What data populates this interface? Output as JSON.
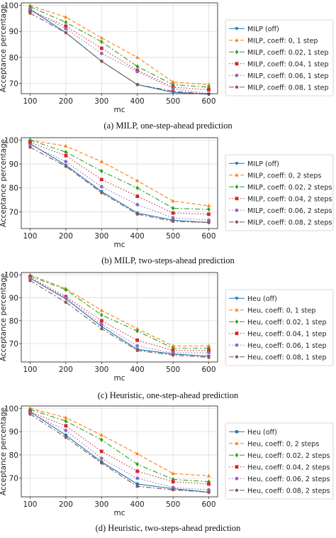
{
  "chart_data": [
    {
      "type": "line",
      "caption": "(a) MILP, one-step-ahead prediction",
      "xlabel": "mc",
      "ylabel": "Acceptance percentage",
      "x": [
        100,
        200,
        300,
        400,
        500,
        600
      ],
      "ylim": [
        66,
        101
      ],
      "yticks": [
        70,
        80,
        90,
        100
      ],
      "grid": true,
      "legend_position": "right",
      "series": [
        {
          "name": "MILP (off)",
          "color": "#1f77b4",
          "dash": "solid",
          "marker": "tri-down",
          "values": [
            98.5,
            89.5,
            78.5,
            69.5,
            66.5,
            65.8
          ]
        },
        {
          "name": "MILP, coeff: 0, 1 step",
          "color": "#ff7f0e",
          "dash": "dashed",
          "marker": "tri-up",
          "values": [
            100,
            95.5,
            87.5,
            80,
            70.5,
            69.5
          ]
        },
        {
          "name": "MILP, coeff: 0.02, 1 step",
          "color": "#2ca02c",
          "dash": "dashdot",
          "marker": "diamond",
          "values": [
            99.5,
            93.5,
            86,
            76.5,
            69.5,
            68.5
          ]
        },
        {
          "name": "MILP, coeff: 0.04, 1 step",
          "color": "#d62728",
          "dash": "dotted",
          "marker": "square",
          "values": [
            98,
            92,
            83.5,
            75,
            68.5,
            67.5
          ]
        },
        {
          "name": "MILP, coeff: 0.06, 1 step",
          "color": "#9467bd",
          "dash": "dotted",
          "marker": "circle",
          "values": [
            98.5,
            91,
            81.5,
            74.5,
            68,
            66
          ]
        },
        {
          "name": "MILP, coeff: 0.08, 1 step",
          "color": "#8c564b",
          "dash": "dashdot",
          "marker": "hexagon",
          "values": [
            97,
            89.5,
            78.5,
            69.5,
            67,
            65.8
          ]
        }
      ]
    },
    {
      "type": "line",
      "caption": "(b) MILP, two-steps-ahead prediction",
      "xlabel": "mc",
      "ylabel": "Acceptance percentage",
      "x": [
        100,
        200,
        300,
        400,
        500,
        600
      ],
      "ylim": [
        63,
        101
      ],
      "yticks": [
        70,
        80,
        90,
        100
      ],
      "grid": true,
      "legend_position": "right",
      "series": [
        {
          "name": "MILP (off)",
          "color": "#1f77b4",
          "dash": "solid",
          "marker": "tri-down",
          "values": [
            98.5,
            89.5,
            78.5,
            69.5,
            66.5,
            65.5
          ]
        },
        {
          "name": "MILP, coeff: 0, 2 steps",
          "color": "#ff7f0e",
          "dash": "dashed",
          "marker": "tri-up",
          "values": [
            100,
            97.5,
            91,
            83,
            74.5,
            72.5
          ]
        },
        {
          "name": "MILP, coeff: 0.02, 2 steps",
          "color": "#2ca02c",
          "dash": "dashdot",
          "marker": "diamond",
          "values": [
            100,
            95,
            87,
            80,
            71.5,
            71
          ]
        },
        {
          "name": "MILP, coeff: 0.04, 2 steps",
          "color": "#d62728",
          "dash": "dotted",
          "marker": "square",
          "values": [
            99,
            93.5,
            83.5,
            76.5,
            69.5,
            69
          ]
        },
        {
          "name": "MILP, coeff: 0.06, 2 steps",
          "color": "#9467bd",
          "dash": "dotted",
          "marker": "circle",
          "values": [
            98,
            91,
            80.5,
            73,
            67.5,
            66.5
          ]
        },
        {
          "name": "MILP, coeff: 0.08, 2 steps",
          "color": "#8c564b",
          "dash": "dashdot",
          "marker": "hexagon",
          "values": [
            97,
            89,
            78,
            69,
            66,
            65.5
          ]
        }
      ]
    },
    {
      "type": "line",
      "caption": "(c) Heuristic, one-step-ahead prediction",
      "xlabel": "mc",
      "ylabel": "Acceptance percentage",
      "x": [
        100,
        200,
        300,
        400,
        500,
        600
      ],
      "ylim": [
        62,
        101
      ],
      "yticks": [
        70,
        80,
        90,
        100
      ],
      "grid": true,
      "legend_position": "right",
      "series": [
        {
          "name": "Heu (off)",
          "color": "#1f77b4",
          "dash": "solid",
          "marker": "tri-down",
          "values": [
            98.5,
            89.5,
            77.5,
            67.5,
            65.5,
            64.5
          ]
        },
        {
          "name": "Heu, coeff: 0, 1 step",
          "color": "#ff7f0e",
          "dash": "dashed",
          "marker": "tri-up",
          "values": [
            100,
            94,
            84.5,
            76.5,
            69,
            69
          ]
        },
        {
          "name": "Heu, coeff: 0.02, 1 step",
          "color": "#2ca02c",
          "dash": "dashdot",
          "marker": "diamond",
          "values": [
            99.5,
            93.5,
            82.5,
            75.5,
            68,
            68
          ]
        },
        {
          "name": "Heu, coeff: 0.04, 1 step",
          "color": "#d62728",
          "dash": "dotted",
          "marker": "square",
          "values": [
            99,
            90.5,
            80,
            71.5,
            67,
            67
          ]
        },
        {
          "name": "Heu, coeff: 0.06, 1 step",
          "color": "#9467bd",
          "dash": "dotted",
          "marker": "circle",
          "values": [
            98.5,
            90,
            78.5,
            69,
            66,
            66
          ]
        },
        {
          "name": "Heu, coeff: 0.08, 1 step",
          "color": "#8c564b",
          "dash": "dashdot",
          "marker": "hexagon",
          "values": [
            97.5,
            88,
            76.5,
            67,
            65,
            64
          ]
        }
      ]
    },
    {
      "type": "line",
      "caption": "(d) Heuristic, two-steps-ahead prediction",
      "xlabel": "mc",
      "ylabel": "Acceptance percentage",
      "x": [
        100,
        200,
        300,
        400,
        500,
        600
      ],
      "ylim": [
        62,
        101
      ],
      "yticks": [
        70,
        80,
        90,
        100
      ],
      "grid": true,
      "legend_position": "right",
      "series": [
        {
          "name": "Heu (off)",
          "color": "#1f77b4",
          "dash": "solid",
          "marker": "circle",
          "values": [
            98.5,
            88.5,
            77,
            67.5,
            65.5,
            64
          ]
        },
        {
          "name": "Heu, coeff: 0, 2 steps",
          "color": "#ff7f0e",
          "dash": "dashed",
          "marker": "tri-up",
          "values": [
            100,
            96,
            88.5,
            80.5,
            72,
            71
          ]
        },
        {
          "name": "Heu, coeff: 0.02, 2 steps",
          "color": "#2ca02c",
          "dash": "dashdot",
          "marker": "diamond",
          "values": [
            99.5,
            94.5,
            86.5,
            76,
            69.5,
            68.5
          ]
        },
        {
          "name": "Heu, coeff: 0.04, 2 steps",
          "color": "#d62728",
          "dash": "dotted",
          "marker": "square",
          "values": [
            98.5,
            92.5,
            81.5,
            73,
            68.5,
            67.5
          ]
        },
        {
          "name": "Heu, coeff: 0.06, 2 steps",
          "color": "#9467bd",
          "dash": "dotted",
          "marker": "circle",
          "values": [
            98,
            90.5,
            78.5,
            70,
            66,
            65
          ]
        },
        {
          "name": "Heu, coeff: 0.08, 2 steps",
          "color": "#8c564b",
          "dash": "dashdot",
          "marker": "hexagon",
          "values": [
            97.5,
            87.5,
            76.5,
            66.5,
            65,
            64
          ]
        }
      ]
    }
  ]
}
